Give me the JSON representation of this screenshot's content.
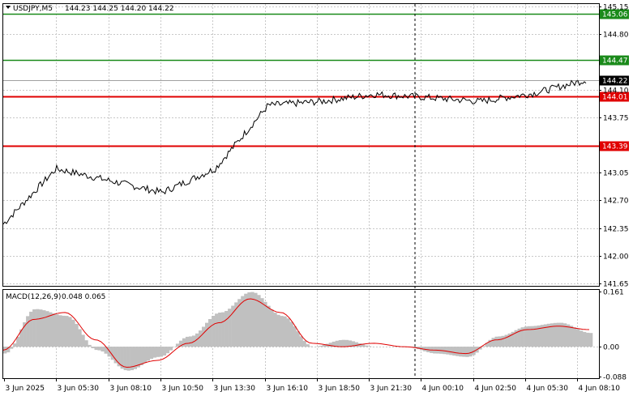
{
  "header": {
    "symbol_text": "USDJPY,M5",
    "ohlc_text": "144.23 144.25 144.20 144.22"
  },
  "macd_header": {
    "name_text": "MACD(12,26,9)",
    "values_text": "0.048 0.065"
  },
  "colors": {
    "price_line": "#000000",
    "support": "#e00000",
    "resistance": "#1a8a1a",
    "macd_hist": "#c0c0c0",
    "macd_signal": "#e00000",
    "grid": "#c8c8c8",
    "current_price_box": "#000000"
  },
  "chart_data": [
    {
      "type": "line",
      "title": "",
      "series": [
        {
          "name": "USDJPY,M5",
          "x": [
            "3 Jun 2025",
            "3 Jun 05:30",
            "3 Jun 08:10",
            "3 Jun 10:50",
            "3 Jun 13:30",
            "3 Jun 16:10",
            "3 Jun 18:50",
            "3 Jun 21:30",
            "4 Jun 00:10",
            "4 Jun 02:50",
            "4 Jun 05:30",
            "4 Jun 08:10"
          ],
          "values": [
            142.4,
            143.1,
            142.95,
            142.8,
            143.1,
            143.9,
            143.95,
            144.04,
            144.0,
            143.95,
            144.05,
            144.22
          ]
        }
      ],
      "y_ticks": [
        "145.15",
        "144.80",
        "144.10",
        "143.75",
        "143.05",
        "142.70",
        "142.35",
        "142.00",
        "141.65"
      ],
      "x_ticks": [
        "3 Jun 2025",
        "3 Jun 05:30",
        "3 Jun 08:10",
        "3 Jun 10:50",
        "3 Jun 13:30",
        "3 Jun 16:10",
        "3 Jun 18:50",
        "3 Jun 21:30",
        "4 Jun 00:10",
        "4 Jun 02:50",
        "4 Jun 05:30",
        "4 Jun 08:10"
      ],
      "ylim": [
        141.62,
        145.18
      ],
      "grid": true,
      "levels": [
        {
          "label": "145.06",
          "value": 145.06,
          "kind": "resistance"
        },
        {
          "label": "144.47",
          "value": 144.47,
          "kind": "resistance"
        },
        {
          "label": "144.01",
          "value": 144.01,
          "kind": "support"
        },
        {
          "label": "143.39",
          "value": 143.39,
          "kind": "support"
        }
      ],
      "current_price": {
        "label": "144.22",
        "value": 144.22
      }
    },
    {
      "type": "bar",
      "title": "",
      "series": [
        {
          "name": "MACD histogram",
          "values": [
            -0.02,
            0.11,
            0.09,
            -0.01,
            -0.07,
            -0.03,
            0.03,
            0.1,
            0.16,
            0.09,
            0.0,
            0.02,
            0.0,
            0.0,
            -0.02,
            -0.03,
            0.03,
            0.06,
            0.07,
            0.04
          ]
        },
        {
          "name": "Signal",
          "values": [
            -0.01,
            0.08,
            0.1,
            0.02,
            -0.06,
            -0.04,
            0.01,
            0.07,
            0.14,
            0.1,
            0.01,
            0.0,
            0.01,
            0.0,
            -0.01,
            -0.02,
            0.02,
            0.05,
            0.06,
            0.05
          ]
        }
      ],
      "y_ticks": [
        "0.161",
        "0.00",
        "-0.088"
      ],
      "ylim": [
        -0.092,
        0.166
      ]
    }
  ]
}
